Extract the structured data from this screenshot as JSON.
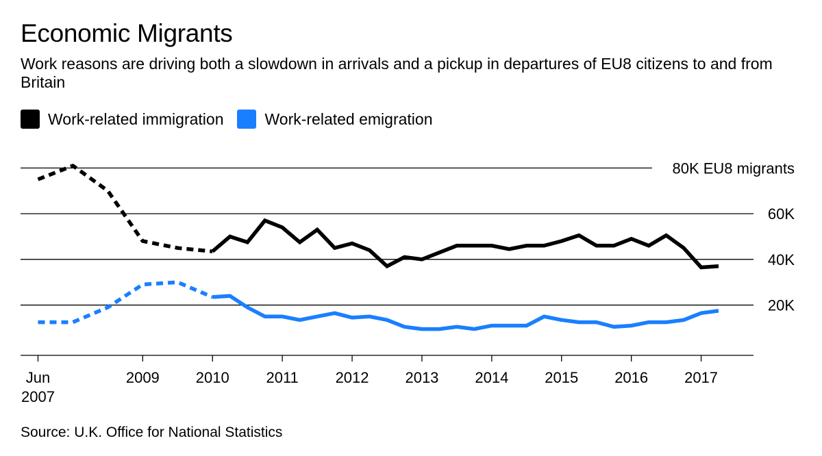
{
  "title": "Economic Migrants",
  "subtitle": "Work reasons are driving both a slowdown in arrivals and a pickup in departures of EU8 citizens to and from Britain",
  "source": "Source: U.K. Office for National Statistics",
  "colors": {
    "immigration": "#000000",
    "emigration": "#1a7fff",
    "grid": "#000000"
  },
  "legend": [
    {
      "label": "Work-related immigration",
      "color": "#000000"
    },
    {
      "label": "Work-related emigration",
      "color": "#1a7fff"
    }
  ],
  "chart_data": {
    "type": "line",
    "title": "Economic Migrants",
    "ylabel": "EU8 migrants",
    "xlim": [
      2007.25,
      2017.75
    ],
    "ylim": [
      -2,
      84
    ],
    "y_ticks": [
      {
        "value": 80,
        "label": "80K EU8 migrants"
      },
      {
        "value": 60,
        "label": "60K"
      },
      {
        "value": 40,
        "label": "40K"
      },
      {
        "value": 20,
        "label": "20K"
      }
    ],
    "x_ticks": [
      {
        "value": 2007.5,
        "label": "Jun",
        "label2": "2007"
      },
      {
        "value": 2009,
        "label": "2009"
      },
      {
        "value": 2010,
        "label": "2010"
      },
      {
        "value": 2011,
        "label": "2011"
      },
      {
        "value": 2012,
        "label": "2012"
      },
      {
        "value": 2013,
        "label": "2013"
      },
      {
        "value": 2014,
        "label": "2014"
      },
      {
        "value": 2015,
        "label": "2015"
      },
      {
        "value": 2016,
        "label": "2016"
      },
      {
        "value": 2017,
        "label": "2017"
      }
    ],
    "series": [
      {
        "name": "Work-related immigration",
        "color": "#000000",
        "dashed_points": [
          [
            2007.5,
            75
          ],
          [
            2008.0,
            81
          ],
          [
            2008.5,
            70
          ],
          [
            2009.0,
            48
          ],
          [
            2009.5,
            45
          ],
          [
            2010.0,
            43.5
          ]
        ],
        "points": [
          [
            2010.0,
            43.5
          ],
          [
            2010.25,
            50
          ],
          [
            2010.5,
            47.5
          ],
          [
            2010.75,
            57
          ],
          [
            2011.0,
            54
          ],
          [
            2011.25,
            47.5
          ],
          [
            2011.5,
            53
          ],
          [
            2011.75,
            45
          ],
          [
            2012.0,
            47
          ],
          [
            2012.25,
            44
          ],
          [
            2012.5,
            37
          ],
          [
            2012.75,
            41
          ],
          [
            2013.0,
            40
          ],
          [
            2013.25,
            43
          ],
          [
            2013.5,
            46
          ],
          [
            2013.75,
            46
          ],
          [
            2014.0,
            46
          ],
          [
            2014.25,
            44.5
          ],
          [
            2014.5,
            46
          ],
          [
            2014.75,
            46
          ],
          [
            2015.0,
            48
          ],
          [
            2015.25,
            50.5
          ],
          [
            2015.5,
            46
          ],
          [
            2015.75,
            46
          ],
          [
            2016.0,
            49
          ],
          [
            2016.25,
            46
          ],
          [
            2016.5,
            50.5
          ],
          [
            2016.75,
            45
          ],
          [
            2017.0,
            36.5
          ],
          [
            2017.25,
            37
          ]
        ]
      },
      {
        "name": "Work-related emigration",
        "color": "#1a7fff",
        "dashed_points": [
          [
            2007.5,
            12.5
          ],
          [
            2008.0,
            12.5
          ],
          [
            2008.5,
            19
          ],
          [
            2009.0,
            29
          ],
          [
            2009.5,
            30
          ],
          [
            2010.0,
            23.5
          ]
        ],
        "points": [
          [
            2010.0,
            23.5
          ],
          [
            2010.25,
            24
          ],
          [
            2010.5,
            19
          ],
          [
            2010.75,
            15
          ],
          [
            2011.0,
            15
          ],
          [
            2011.25,
            13.5
          ],
          [
            2011.5,
            15
          ],
          [
            2011.75,
            16.5
          ],
          [
            2012.0,
            14.5
          ],
          [
            2012.25,
            15
          ],
          [
            2012.5,
            13.5
          ],
          [
            2012.75,
            10.5
          ],
          [
            2013.0,
            9.5
          ],
          [
            2013.25,
            9.5
          ],
          [
            2013.5,
            10.5
          ],
          [
            2013.75,
            9.5
          ],
          [
            2014.0,
            11
          ],
          [
            2014.25,
            11
          ],
          [
            2014.5,
            11
          ],
          [
            2014.75,
            15
          ],
          [
            2015.0,
            13.5
          ],
          [
            2015.25,
            12.5
          ],
          [
            2015.5,
            12.5
          ],
          [
            2015.75,
            10.5
          ],
          [
            2016.0,
            11
          ],
          [
            2016.25,
            12.5
          ],
          [
            2016.5,
            12.5
          ],
          [
            2016.75,
            13.5
          ],
          [
            2017.0,
            16.5
          ],
          [
            2017.25,
            17.5
          ]
        ]
      }
    ]
  }
}
